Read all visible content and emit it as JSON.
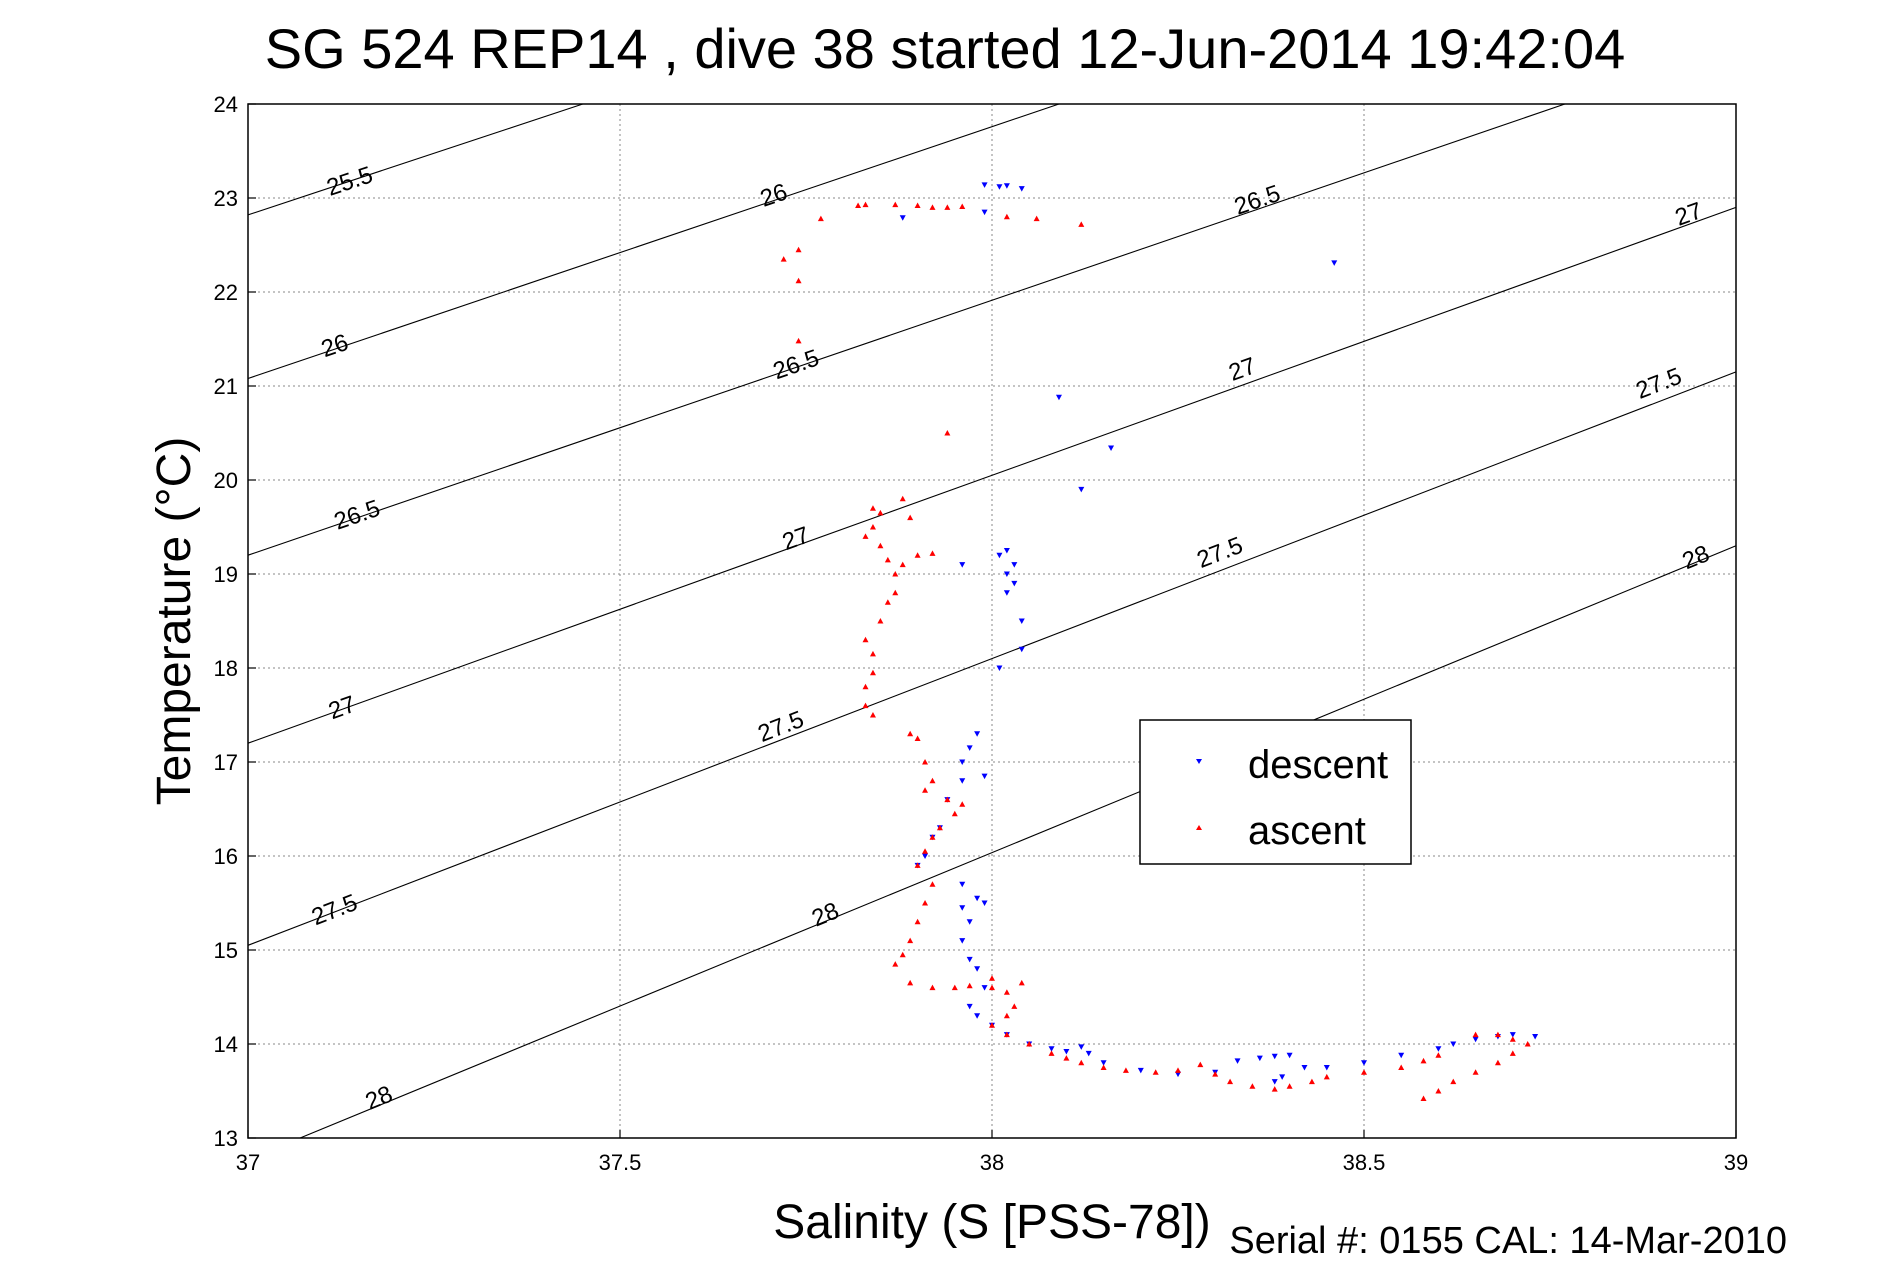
{
  "chart_data": {
    "type": "scatter",
    "title": "SG 524   REP14  , dive 38 started 12-Jun-2014 19:42:04",
    "xlabel": "Salinity (S [PSS-78])",
    "ylabel": "Temperature (°C)",
    "xlim": [
      37,
      39
    ],
    "ylim": [
      13,
      24
    ],
    "x_ticks": [
      "37",
      "37.5",
      "38",
      "38.5",
      "39"
    ],
    "y_ticks": [
      "13",
      "14",
      "15",
      "16",
      "17",
      "18",
      "19",
      "20",
      "21",
      "22",
      "23",
      "24"
    ],
    "grid": true,
    "legend_position": "center-right",
    "contours": [
      {
        "label": "25.5",
        "points": [
          [
            37.0,
            22.82
          ],
          [
            37.45,
            24.0
          ]
        ],
        "label_at": [
          [
            37.14,
            23.1
          ]
        ]
      },
      {
        "label": "26",
        "points": [
          [
            37.0,
            21.08
          ],
          [
            38.09,
            24.0
          ]
        ],
        "label_at": [
          [
            37.12,
            21.35
          ],
          [
            37.71,
            22.95
          ]
        ]
      },
      {
        "label": "26.5",
        "points": [
          [
            37.0,
            19.2
          ],
          [
            38.77,
            24.0
          ]
        ],
        "label_at": [
          [
            37.15,
            19.55
          ],
          [
            37.74,
            21.15
          ],
          [
            38.36,
            22.9
          ]
        ]
      },
      {
        "label": "27",
        "points": [
          [
            37.0,
            17.2
          ],
          [
            39.0,
            22.9
          ]
        ],
        "label_at": [
          [
            37.13,
            17.5
          ],
          [
            37.74,
            19.3
          ],
          [
            38.34,
            21.1
          ],
          [
            38.94,
            22.75
          ]
        ]
      },
      {
        "label": "27.5",
        "points": [
          [
            37.0,
            15.05
          ],
          [
            39.0,
            21.15
          ]
        ],
        "label_at": [
          [
            37.12,
            15.35
          ],
          [
            37.72,
            17.3
          ],
          [
            38.31,
            19.15
          ],
          [
            38.9,
            20.95
          ]
        ]
      },
      {
        "label": "28",
        "points": [
          [
            37.07,
            13.0
          ],
          [
            39.0,
            19.3
          ]
        ],
        "label_at": [
          [
            37.18,
            13.35
          ],
          [
            37.78,
            15.3
          ],
          [
            38.95,
            19.1
          ]
        ]
      }
    ],
    "series": [
      {
        "name": "descent",
        "color": "#0000ff",
        "marker": "triangle-down",
        "points": [
          [
            37.99,
            23.14
          ],
          [
            38.01,
            23.12
          ],
          [
            38.02,
            23.13
          ],
          [
            38.04,
            23.1
          ],
          [
            37.99,
            22.85
          ],
          [
            37.88,
            22.79
          ],
          [
            38.46,
            22.31
          ],
          [
            38.09,
            20.88
          ],
          [
            38.16,
            20.34
          ],
          [
            38.12,
            19.9
          ],
          [
            38.02,
            19.25
          ],
          [
            38.01,
            19.2
          ],
          [
            38.03,
            19.1
          ],
          [
            38.02,
            19.0
          ],
          [
            38.03,
            18.9
          ],
          [
            38.02,
            18.8
          ],
          [
            38.04,
            18.5
          ],
          [
            38.04,
            18.2
          ],
          [
            38.01,
            18.0
          ],
          [
            37.96,
            19.1
          ],
          [
            37.98,
            17.3
          ],
          [
            37.97,
            17.15
          ],
          [
            37.96,
            17.0
          ],
          [
            37.99,
            16.85
          ],
          [
            37.96,
            16.8
          ],
          [
            37.94,
            16.6
          ],
          [
            37.93,
            16.3
          ],
          [
            37.92,
            16.2
          ],
          [
            37.91,
            16.0
          ],
          [
            37.9,
            15.9
          ],
          [
            37.96,
            15.7
          ],
          [
            37.98,
            15.55
          ],
          [
            37.96,
            15.45
          ],
          [
            37.99,
            15.5
          ],
          [
            37.97,
            15.3
          ],
          [
            37.96,
            15.1
          ],
          [
            37.97,
            14.9
          ],
          [
            37.98,
            14.8
          ],
          [
            37.99,
            14.6
          ],
          [
            37.97,
            14.4
          ],
          [
            37.98,
            14.3
          ],
          [
            38.0,
            14.2
          ],
          [
            38.02,
            14.1
          ],
          [
            38.05,
            14.0
          ],
          [
            38.08,
            13.95
          ],
          [
            38.1,
            13.92
          ],
          [
            38.12,
            13.97
          ],
          [
            38.13,
            13.9
          ],
          [
            38.15,
            13.8
          ],
          [
            38.2,
            13.72
          ],
          [
            38.25,
            13.68
          ],
          [
            38.3,
            13.7
          ],
          [
            38.33,
            13.82
          ],
          [
            38.36,
            13.85
          ],
          [
            38.38,
            13.87
          ],
          [
            38.4,
            13.88
          ],
          [
            38.38,
            13.6
          ],
          [
            38.39,
            13.65
          ],
          [
            38.42,
            13.75
          ],
          [
            38.45,
            13.75
          ],
          [
            38.5,
            13.8
          ],
          [
            38.55,
            13.88
          ],
          [
            38.6,
            13.95
          ],
          [
            38.62,
            14.0
          ],
          [
            38.65,
            14.05
          ],
          [
            38.68,
            14.08
          ],
          [
            38.7,
            14.1
          ],
          [
            38.73,
            14.08
          ]
        ]
      },
      {
        "name": "ascent",
        "color": "#ff0000",
        "marker": "triangle-up",
        "points": [
          [
            37.82,
            22.92
          ],
          [
            37.83,
            22.93
          ],
          [
            37.87,
            22.93
          ],
          [
            37.9,
            22.92
          ],
          [
            37.92,
            22.9
          ],
          [
            37.94,
            22.9
          ],
          [
            37.96,
            22.91
          ],
          [
            38.02,
            22.8
          ],
          [
            38.06,
            22.78
          ],
          [
            38.12,
            22.72
          ],
          [
            37.77,
            22.78
          ],
          [
            37.72,
            22.35
          ],
          [
            37.74,
            22.45
          ],
          [
            37.74,
            22.12
          ],
          [
            37.74,
            21.48
          ],
          [
            37.94,
            20.5
          ],
          [
            37.84,
            19.7
          ],
          [
            37.85,
            19.65
          ],
          [
            37.84,
            19.5
          ],
          [
            37.83,
            19.4
          ],
          [
            37.85,
            19.3
          ],
          [
            37.86,
            19.15
          ],
          [
            37.87,
            19.0
          ],
          [
            37.87,
            18.8
          ],
          [
            37.86,
            18.7
          ],
          [
            37.85,
            18.5
          ],
          [
            37.83,
            18.3
          ],
          [
            37.84,
            18.15
          ],
          [
            37.84,
            17.95
          ],
          [
            37.83,
            17.8
          ],
          [
            37.83,
            17.6
          ],
          [
            37.84,
            17.5
          ],
          [
            37.89,
            19.6
          ],
          [
            37.88,
            19.1
          ],
          [
            37.9,
            19.2
          ],
          [
            37.92,
            19.22
          ],
          [
            37.88,
            19.8
          ],
          [
            37.89,
            17.3
          ],
          [
            37.9,
            17.25
          ],
          [
            37.91,
            17.0
          ],
          [
            37.92,
            16.8
          ],
          [
            37.91,
            16.7
          ],
          [
            37.94,
            16.6
          ],
          [
            37.96,
            16.55
          ],
          [
            37.95,
            16.45
          ],
          [
            37.93,
            16.3
          ],
          [
            37.92,
            16.2
          ],
          [
            37.91,
            16.05
          ],
          [
            37.9,
            15.9
          ],
          [
            37.92,
            15.7
          ],
          [
            37.91,
            15.5
          ],
          [
            37.9,
            15.3
          ],
          [
            37.89,
            15.1
          ],
          [
            37.88,
            14.95
          ],
          [
            37.87,
            14.85
          ],
          [
            37.89,
            14.65
          ],
          [
            37.92,
            14.6
          ],
          [
            37.95,
            14.6
          ],
          [
            37.97,
            14.62
          ],
          [
            38.0,
            14.6
          ],
          [
            38.02,
            14.55
          ],
          [
            38.04,
            14.65
          ],
          [
            38.0,
            14.7
          ],
          [
            38.03,
            14.4
          ],
          [
            38.02,
            14.3
          ],
          [
            38.0,
            14.2
          ],
          [
            38.02,
            14.1
          ],
          [
            38.05,
            14.0
          ],
          [
            38.08,
            13.9
          ],
          [
            38.1,
            13.85
          ],
          [
            38.12,
            13.8
          ],
          [
            38.15,
            13.75
          ],
          [
            38.18,
            13.72
          ],
          [
            38.22,
            13.7
          ],
          [
            38.25,
            13.72
          ],
          [
            38.28,
            13.78
          ],
          [
            38.3,
            13.68
          ],
          [
            38.32,
            13.6
          ],
          [
            38.35,
            13.55
          ],
          [
            38.38,
            13.52
          ],
          [
            38.4,
            13.55
          ],
          [
            38.43,
            13.6
          ],
          [
            38.45,
            13.65
          ],
          [
            38.5,
            13.7
          ],
          [
            38.55,
            13.75
          ],
          [
            38.58,
            13.82
          ],
          [
            38.6,
            13.88
          ],
          [
            38.58,
            13.42
          ],
          [
            38.6,
            13.5
          ],
          [
            38.62,
            13.6
          ],
          [
            38.65,
            13.7
          ],
          [
            38.68,
            13.8
          ],
          [
            38.7,
            13.9
          ],
          [
            38.72,
            14.0
          ],
          [
            38.7,
            14.05
          ],
          [
            38.68,
            14.1
          ],
          [
            38.65,
            14.1
          ]
        ]
      }
    ]
  },
  "legend": {
    "descent": "descent",
    "ascent": "ascent"
  },
  "footer": {
    "serial": "Serial #: 0155  CAL: 14-Mar-2010"
  }
}
